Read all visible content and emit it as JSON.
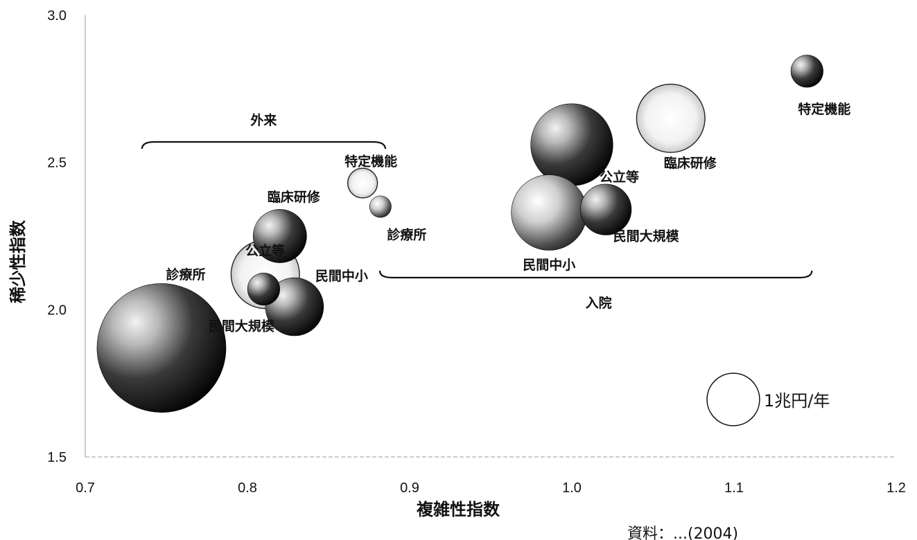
{
  "chart_data": {
    "type": "bubble",
    "xlabel": "複雑性指数",
    "ylabel": "稀少性指数",
    "xlim": [
      0.7,
      1.2
    ],
    "ylim": [
      1.5,
      3.0
    ],
    "x_ticks": [
      "0.7",
      "0.8",
      "0.9",
      "1.0",
      "1.1",
      "1.2"
    ],
    "y_ticks": [
      "1.5",
      "2.0",
      "2.5",
      "3.0"
    ],
    "grid": false,
    "groups": [
      {
        "label": "外来",
        "x_range": [
          0.735,
          0.885
        ]
      },
      {
        "label": "入院",
        "x_range": [
          0.885,
          1.148
        ]
      }
    ],
    "points": [
      {
        "group": "外来",
        "label": "診療所",
        "x": 0.747,
        "y": 1.87,
        "size": 3.2,
        "fill": "dark"
      },
      {
        "group": "外来",
        "label": "公立等",
        "x": 0.811,
        "y": 2.12,
        "size": 0.9,
        "fill": "light"
      },
      {
        "group": "外来",
        "label": "臨床研修",
        "x": 0.82,
        "y": 2.25,
        "size": 0.55,
        "fill": "dark"
      },
      {
        "group": "外来",
        "label": "民間中小",
        "x": 0.829,
        "y": 2.01,
        "size": 0.65,
        "fill": "dark"
      },
      {
        "group": "外来",
        "label": "民間大規模",
        "x": 0.81,
        "y": 2.07,
        "size": 0.2,
        "fill": "dark"
      },
      {
        "group": "外来",
        "label": "特定機能",
        "x": 0.871,
        "y": 2.43,
        "size": 0.17,
        "fill": "light"
      },
      {
        "group": "外来",
        "label": "診療所",
        "x": 0.882,
        "y": 2.35,
        "size": 0.09,
        "fill": "mid"
      },
      {
        "group": "入院",
        "label": "公立等",
        "x": 1.0,
        "y": 2.56,
        "size": 1.3,
        "fill": "dark"
      },
      {
        "group": "入院",
        "label": "民間中小",
        "x": 0.986,
        "y": 2.33,
        "size": 1.1,
        "fill": "mid"
      },
      {
        "group": "入院",
        "label": "民間大規模",
        "x": 1.021,
        "y": 2.34,
        "size": 0.5,
        "fill": "dark"
      },
      {
        "group": "入院",
        "label": "臨床研修",
        "x": 1.061,
        "y": 2.65,
        "size": 0.9,
        "fill": "light"
      },
      {
        "group": "入院",
        "label": "特定機能",
        "x": 1.145,
        "y": 2.81,
        "size": 0.2,
        "fill": "dark"
      }
    ],
    "legend": {
      "label": "1兆円/年",
      "size": 0.65
    }
  },
  "source_note": "資料：...(2004)"
}
